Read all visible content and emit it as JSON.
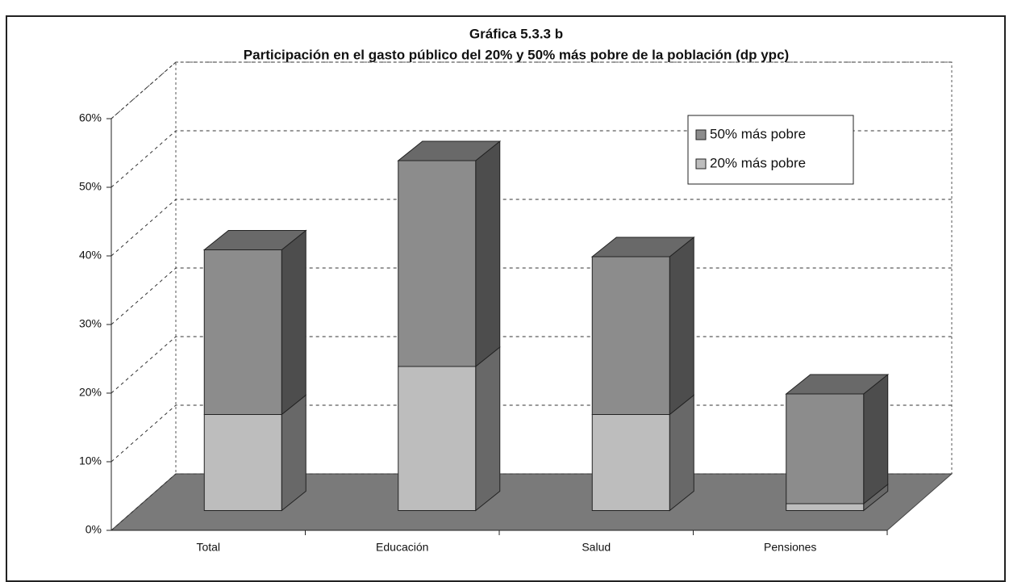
{
  "chart_data": {
    "type": "bar3d_stacked",
    "title": "Gráfica 5.3.3 b",
    "subtitle": "Participación en el gasto público del 20% y 50% más pobre de la población (dp ypc)",
    "categories": [
      "Total",
      "Educación",
      "Salud",
      "Pensiones"
    ],
    "series": [
      {
        "name": "20% más pobre",
        "color": "#bdbdbd",
        "values": [
          14,
          21,
          14,
          1
        ]
      },
      {
        "name": "50% más pobre",
        "color": "#8c8c8c",
        "values": [
          24,
          30,
          23,
          16
        ]
      }
    ],
    "ylim": [
      0,
      60
    ],
    "yticks": [
      {
        "value": 0,
        "label": "0%"
      },
      {
        "value": 10,
        "label": "10%"
      },
      {
        "value": 20,
        "label": "20%"
      },
      {
        "value": 30,
        "label": "30%"
      },
      {
        "value": 40,
        "label": "40%"
      },
      {
        "value": 50,
        "label": "50%"
      },
      {
        "value": 60,
        "label": "60%"
      }
    ],
    "grid": true,
    "legend": "top-right"
  }
}
